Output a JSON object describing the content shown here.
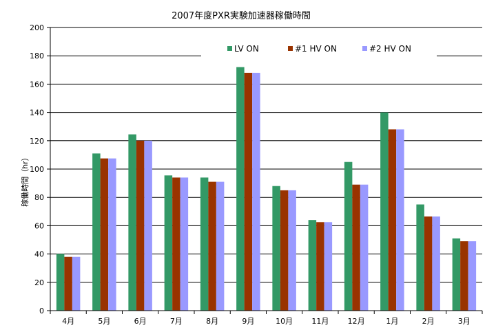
{
  "chart_data": {
    "type": "bar",
    "title": "2007年度PXR実験加速器稼働時間",
    "xlabel": "",
    "ylabel": "稼働時間（hr）",
    "ylim": [
      0,
      200
    ],
    "yticks": [
      0,
      20,
      40,
      60,
      80,
      100,
      120,
      140,
      160,
      180,
      200
    ],
    "grid": true,
    "legend_position": "top-right",
    "categories": [
      "4月",
      "5月",
      "6月",
      "7月",
      "8月",
      "9月",
      "10月",
      "11月",
      "12月",
      "1月",
      "2月",
      "3月"
    ],
    "series": [
      {
        "name": "LV ON",
        "color": "#339966",
        "values": [
          40,
          111,
          124.5,
          95.5,
          94,
          172,
          88,
          64,
          105,
          140,
          75,
          51
        ]
      },
      {
        "name": "#1  HV ON",
        "color": "#993300",
        "values": [
          38,
          107.5,
          120,
          94,
          91,
          168,
          85,
          62.5,
          89,
          128,
          66.5,
          49
        ]
      },
      {
        "name": "#2  HV ON",
        "color": "#9999ff",
        "values": [
          38,
          107.5,
          120,
          94,
          91,
          168,
          85,
          62.5,
          89,
          128,
          66.5,
          49
        ]
      }
    ]
  }
}
